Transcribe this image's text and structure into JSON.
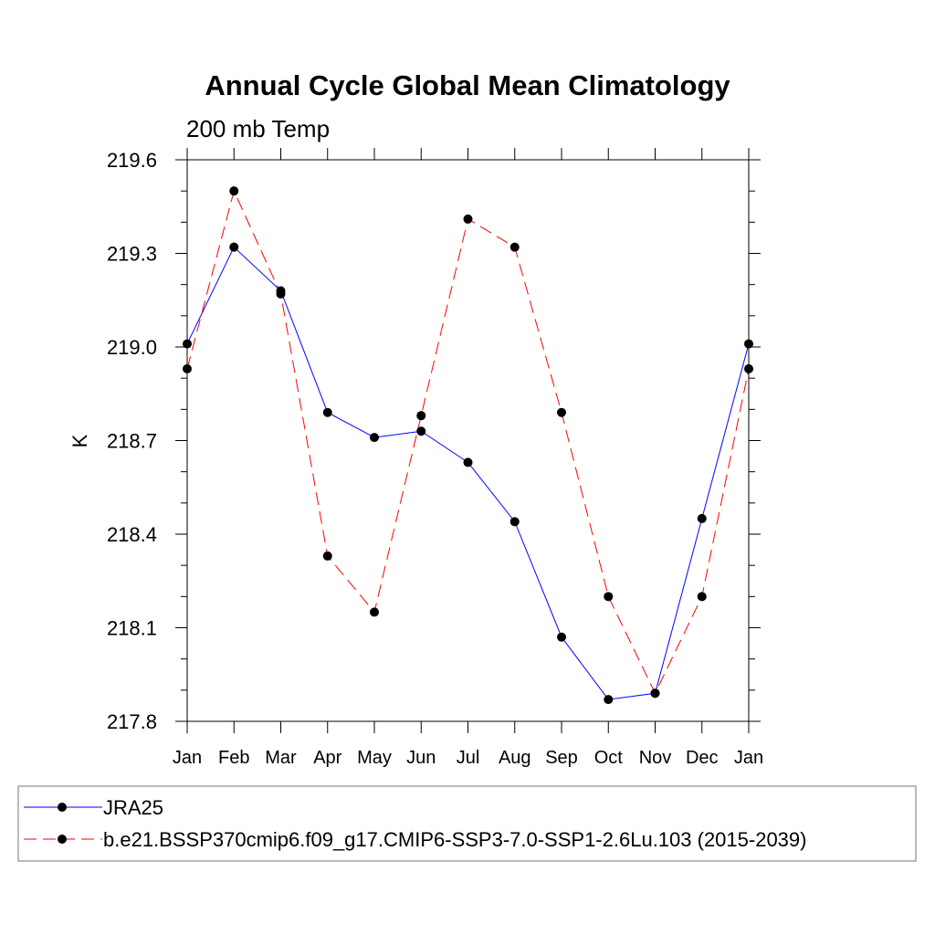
{
  "chart_data": {
    "type": "line",
    "title": "Annual Cycle Global Mean Climatology",
    "subtitle": "200 mb Temp",
    "ylabel": "K",
    "xlabel": "",
    "categories": [
      "Jan",
      "Feb",
      "Mar",
      "Apr",
      "May",
      "Jun",
      "Jul",
      "Aug",
      "Sep",
      "Oct",
      "Nov",
      "Dec",
      "Jan"
    ],
    "ylim": [
      217.8,
      219.6
    ],
    "yticks": [
      "219.6",
      "219.3",
      "219.0",
      "218.7",
      "218.4",
      "218.1",
      "217.8"
    ],
    "series": [
      {
        "name": "JRA25",
        "color": "#0000ff",
        "dash": "solid",
        "marker": "filled-circle",
        "values": [
          219.01,
          219.32,
          219.18,
          218.79,
          218.71,
          218.73,
          218.63,
          218.44,
          218.07,
          217.87,
          217.89,
          218.45,
          219.01
        ]
      },
      {
        "name": "b.e21.BSSP370cmip6.f09_g17.CMIP6-SSP3-7.0-SSP1-2.6Lu.103 (2015-2039)",
        "color": "#ff0000",
        "dash": "dashed",
        "marker": "filled-circle",
        "values": [
          218.93,
          219.5,
          219.17,
          218.33,
          218.15,
          218.78,
          219.41,
          219.32,
          218.79,
          218.2,
          217.89,
          218.2,
          218.93
        ]
      }
    ],
    "grid": false,
    "legend_position": "bottom"
  }
}
